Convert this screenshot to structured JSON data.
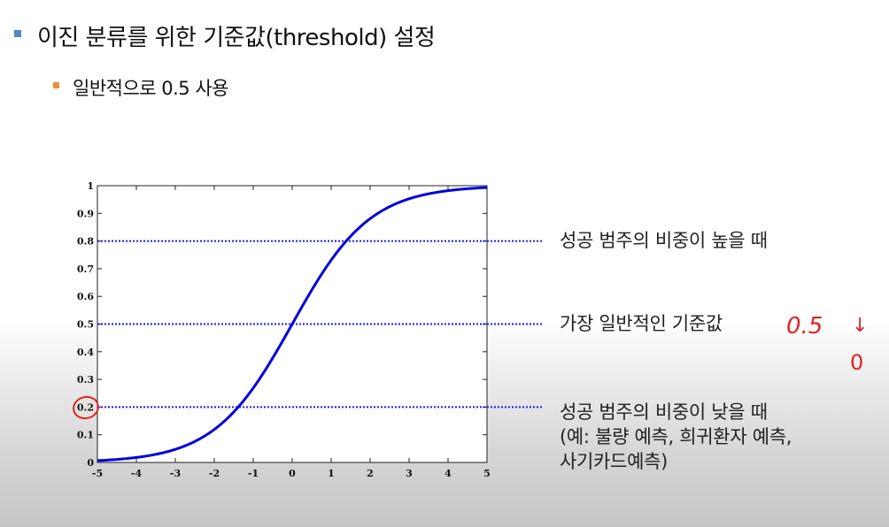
{
  "slide": {
    "title": "이진 분류를 위한 기준값(threshold) 설정",
    "subbullet": "일반적으로 0.5 사용",
    "accent_bullet_color": "#4f87c4",
    "sub_bullet_color": "#ef8c3a"
  },
  "annotations": {
    "high_label": "성공 범주의 비중이 높을 때",
    "mid_label": "가장 일반적인 기준값",
    "low_label_line1": "성공 범주의 비중이 낮을 때",
    "low_label_line2": "(예: 불량 예측, 희귀환자 예측,",
    "low_label_line3": "사기카드예측)"
  },
  "handwriting": {
    "value": "0.5",
    "arrow": "↓",
    "result": "0",
    "color": "#e02323"
  },
  "chart_data": {
    "type": "line",
    "function": "sigmoid",
    "x": [
      -5,
      -4.5,
      -4,
      -3.5,
      -3,
      -2.5,
      -2,
      -1.5,
      -1,
      -0.5,
      0,
      0.5,
      1,
      1.5,
      2,
      2.5,
      3,
      3.5,
      4,
      4.5,
      5
    ],
    "y": [
      0.007,
      0.011,
      0.018,
      0.029,
      0.047,
      0.076,
      0.119,
      0.182,
      0.269,
      0.378,
      0.5,
      0.622,
      0.731,
      0.818,
      0.881,
      0.924,
      0.953,
      0.971,
      0.982,
      0.989,
      0.993
    ],
    "xlim": [
      -5,
      5
    ],
    "ylim": [
      0,
      1
    ],
    "x_ticks": [
      "-5",
      "-4",
      "-3",
      "-2",
      "-1",
      "0",
      "1",
      "2",
      "3",
      "4",
      "5"
    ],
    "y_ticks": [
      "0",
      "0.1",
      "0.2",
      "0.3",
      "0.4",
      "0.5",
      "0.6",
      "0.7",
      "0.8",
      "0.9",
      "1"
    ],
    "thresholds": [
      0.8,
      0.5,
      0.2
    ],
    "curve_color": "#0000dd",
    "threshold_color": "#1a1aff",
    "circled_tick": "0.2"
  }
}
